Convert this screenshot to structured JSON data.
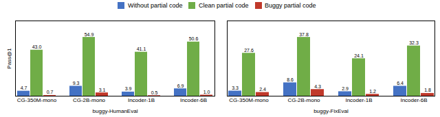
{
  "chart_data": [
    {
      "type": "bar",
      "xlabel": "buggy-HumanEval",
      "ylabel": "Pass@1",
      "categories": [
        "CG-350M-mono",
        "CG-2B-mono",
        "Incoder-1B",
        "Incoder-6B"
      ],
      "series": [
        {
          "name": "Without partial code",
          "color": "#4472C4",
          "values": [
            4.7,
            9.3,
            3.9,
            6.9
          ],
          "value_labels": [
            "4.7",
            "9.3",
            "3.9",
            "6.9"
          ]
        },
        {
          "name": "Clean partial code",
          "color": "#70AD47",
          "values": [
            43.0,
            54.9,
            41.1,
            50.6
          ],
          "value_labels": [
            "43.0",
            "54.9",
            "41.1",
            "50.6"
          ]
        },
        {
          "name": "Buggy partial code",
          "color": "#C0392B",
          "values": [
            0.7,
            3.1,
            0.5,
            1.0
          ],
          "value_labels": [
            "0.7",
            "3.1",
            "0.5",
            "1.0"
          ]
        }
      ],
      "ylim": [
        0,
        70.272
      ],
      "data_labels": true,
      "tick_labels": "x",
      "legend": "top"
    },
    {
      "type": "bar",
      "xlabel": "buggy-FixEval",
      "categories": [
        "CG-350M-mono",
        "CG-2B-mono",
        "Incoder-1B",
        "Incoder-6B"
      ],
      "series": [
        {
          "name": "Without partial code",
          "color": "#4472C4",
          "values": [
            3.3,
            8.6,
            2.9,
            6.4
          ],
          "value_labels": [
            "3.3",
            "8.6",
            "2.9",
            "6.4"
          ]
        },
        {
          "name": "Clean partial code",
          "color": "#70AD47",
          "values": [
            27.6,
            37.8,
            24.1,
            32.3
          ],
          "value_labels": [
            "27.6",
            "37.8",
            "24.1",
            "32.3"
          ]
        },
        {
          "name": "Buggy partial code",
          "color": "#C0392B",
          "values": [
            2.4,
            4.3,
            1.2,
            1.8
          ],
          "value_labels": [
            "2.4",
            "4.3",
            "1.2",
            "1.8"
          ]
        }
      ],
      "ylim": [
        0,
        48.384
      ],
      "data_labels": true,
      "tick_labels": "x"
    }
  ]
}
